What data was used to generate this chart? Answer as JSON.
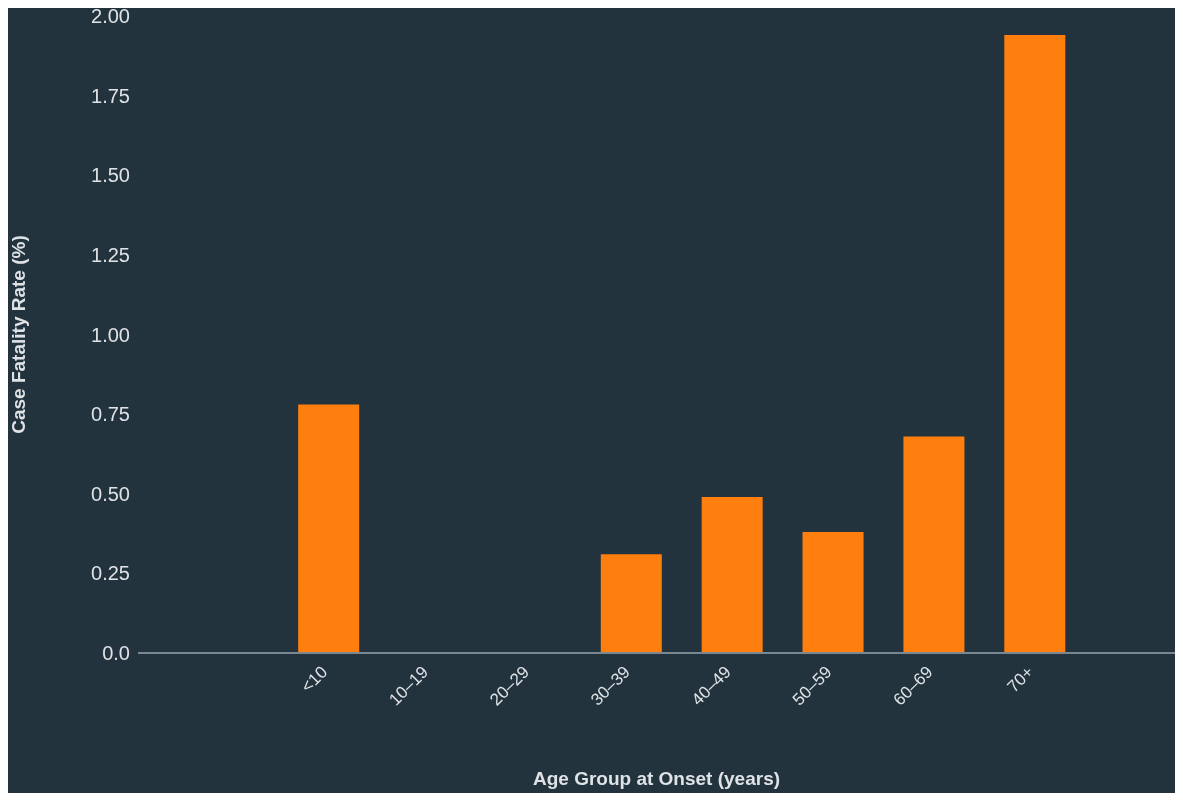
{
  "chart_data": {
    "type": "bar",
    "xlabel": "Age Group at Onset (years)",
    "ylabel": "Case Fatality Rate (%)",
    "categories": [
      "<10",
      "10–19",
      "20–29",
      "30–39",
      "40–49",
      "50–59",
      "60–69",
      "70+"
    ],
    "values": [
      0.78,
      0,
      0,
      0.31,
      0.49,
      0.38,
      0.68,
      1.94
    ],
    "color": "#ff7f0e",
    "ylim": [
      0,
      2
    ],
    "yticks": [
      {
        "value": 0,
        "label": "0.0"
      },
      0.25,
      {
        "value": 0.5,
        "label": "0.50"
      },
      0.75,
      {
        "value": 1,
        "label": "1.00"
      },
      1.25,
      {
        "value": 1.5,
        "label": "1.50"
      },
      1.75,
      {
        "value": 2,
        "label": "2.00"
      }
    ],
    "grid": false,
    "legend": false
  }
}
